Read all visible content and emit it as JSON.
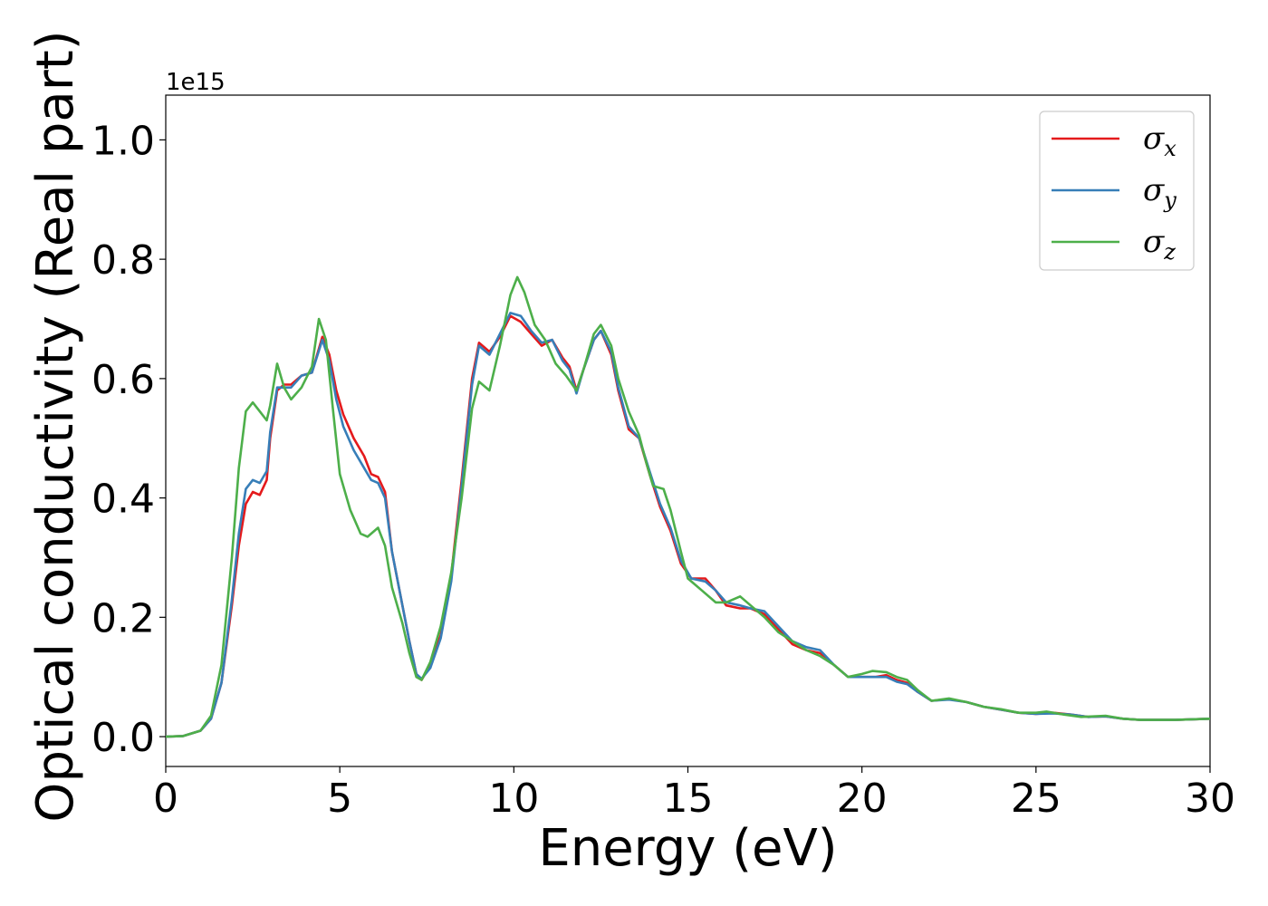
{
  "chart_data": {
    "type": "line",
    "xlabel": "Energy (eV)",
    "ylabel": "Optical conductivity (Real part)",
    "y_offset_label": "1e15",
    "xlim": [
      0,
      30
    ],
    "ylim": [
      -0.05,
      1.075
    ],
    "x_ticks": [
      0,
      5,
      10,
      15,
      20,
      25,
      30
    ],
    "x_tick_labels": [
      "0",
      "5",
      "10",
      "15",
      "20",
      "25",
      "30"
    ],
    "y_ticks": [
      0.0,
      0.2,
      0.4,
      0.6,
      0.8,
      1.0
    ],
    "y_tick_labels": [
      "0.0",
      "0.2",
      "0.4",
      "0.6",
      "0.8",
      "1.0"
    ],
    "grid": false,
    "legend_position": "top-right",
    "series": [
      {
        "name": "σx",
        "symbol": "σ",
        "subscript": "x",
        "color": "#e41a1c",
        "points": [
          [
            0,
            0
          ],
          [
            0.5,
            0.001
          ],
          [
            1,
            0.01
          ],
          [
            1.3,
            0.03
          ],
          [
            1.6,
            0.09
          ],
          [
            1.9,
            0.22
          ],
          [
            2.1,
            0.32
          ],
          [
            2.3,
            0.39
          ],
          [
            2.5,
            0.41
          ],
          [
            2.7,
            0.405
          ],
          [
            2.9,
            0.43
          ],
          [
            3.0,
            0.5
          ],
          [
            3.2,
            0.58
          ],
          [
            3.4,
            0.59
          ],
          [
            3.6,
            0.59
          ],
          [
            3.9,
            0.605
          ],
          [
            4.2,
            0.61
          ],
          [
            4.5,
            0.67
          ],
          [
            4.7,
            0.64
          ],
          [
            4.9,
            0.58
          ],
          [
            5.1,
            0.54
          ],
          [
            5.4,
            0.5
          ],
          [
            5.7,
            0.47
          ],
          [
            5.9,
            0.44
          ],
          [
            6.1,
            0.435
          ],
          [
            6.3,
            0.41
          ],
          [
            6.5,
            0.31
          ],
          [
            6.8,
            0.22
          ],
          [
            7.0,
            0.16
          ],
          [
            7.2,
            0.105
          ],
          [
            7.35,
            0.095
          ],
          [
            7.6,
            0.12
          ],
          [
            7.9,
            0.17
          ],
          [
            8.2,
            0.27
          ],
          [
            8.5,
            0.43
          ],
          [
            8.8,
            0.6
          ],
          [
            9.0,
            0.66
          ],
          [
            9.3,
            0.645
          ],
          [
            9.6,
            0.67
          ],
          [
            9.9,
            0.705
          ],
          [
            10.2,
            0.695
          ],
          [
            10.5,
            0.675
          ],
          [
            10.8,
            0.655
          ],
          [
            11.1,
            0.665
          ],
          [
            11.4,
            0.635
          ],
          [
            11.6,
            0.62
          ],
          [
            11.8,
            0.58
          ],
          [
            12.0,
            0.615
          ],
          [
            12.3,
            0.665
          ],
          [
            12.5,
            0.68
          ],
          [
            12.8,
            0.64
          ],
          [
            13.0,
            0.58
          ],
          [
            13.3,
            0.515
          ],
          [
            13.6,
            0.5
          ],
          [
            13.9,
            0.44
          ],
          [
            14.2,
            0.385
          ],
          [
            14.5,
            0.345
          ],
          [
            14.8,
            0.29
          ],
          [
            15.1,
            0.265
          ],
          [
            15.5,
            0.265
          ],
          [
            15.8,
            0.245
          ],
          [
            16.1,
            0.22
          ],
          [
            16.5,
            0.215
          ],
          [
            16.8,
            0.215
          ],
          [
            17.2,
            0.205
          ],
          [
            17.6,
            0.18
          ],
          [
            18.0,
            0.155
          ],
          [
            18.4,
            0.145
          ],
          [
            18.8,
            0.14
          ],
          [
            19.2,
            0.12
          ],
          [
            19.6,
            0.1
          ],
          [
            20.0,
            0.1
          ],
          [
            20.4,
            0.1
          ],
          [
            20.7,
            0.103
          ],
          [
            21.0,
            0.095
          ],
          [
            21.3,
            0.09
          ],
          [
            21.6,
            0.075
          ],
          [
            22.0,
            0.06
          ],
          [
            22.5,
            0.063
          ],
          [
            23.0,
            0.058
          ],
          [
            23.5,
            0.05
          ],
          [
            24.0,
            0.045
          ],
          [
            24.5,
            0.04
          ],
          [
            25.0,
            0.038
          ],
          [
            25.5,
            0.04
          ],
          [
            26.0,
            0.037
          ],
          [
            26.5,
            0.033
          ],
          [
            27.0,
            0.034
          ],
          [
            27.5,
            0.03
          ],
          [
            28.0,
            0.028
          ],
          [
            29.0,
            0.028
          ],
          [
            30.0,
            0.03
          ]
        ]
      },
      {
        "name": "σy",
        "symbol": "σ",
        "subscript": "y",
        "color": "#377eb8",
        "points": [
          [
            0,
            0
          ],
          [
            0.5,
            0.001
          ],
          [
            1,
            0.01
          ],
          [
            1.3,
            0.03
          ],
          [
            1.6,
            0.09
          ],
          [
            1.9,
            0.23
          ],
          [
            2.1,
            0.34
          ],
          [
            2.3,
            0.415
          ],
          [
            2.5,
            0.43
          ],
          [
            2.7,
            0.425
          ],
          [
            2.9,
            0.445
          ],
          [
            3.0,
            0.51
          ],
          [
            3.2,
            0.585
          ],
          [
            3.4,
            0.585
          ],
          [
            3.6,
            0.585
          ],
          [
            3.9,
            0.605
          ],
          [
            4.2,
            0.61
          ],
          [
            4.5,
            0.665
          ],
          [
            4.7,
            0.63
          ],
          [
            4.9,
            0.565
          ],
          [
            5.1,
            0.52
          ],
          [
            5.4,
            0.48
          ],
          [
            5.7,
            0.45
          ],
          [
            5.9,
            0.43
          ],
          [
            6.1,
            0.425
          ],
          [
            6.3,
            0.4
          ],
          [
            6.5,
            0.31
          ],
          [
            6.8,
            0.22
          ],
          [
            7.0,
            0.16
          ],
          [
            7.2,
            0.105
          ],
          [
            7.35,
            0.097
          ],
          [
            7.6,
            0.115
          ],
          [
            7.9,
            0.165
          ],
          [
            8.2,
            0.26
          ],
          [
            8.5,
            0.42
          ],
          [
            8.8,
            0.59
          ],
          [
            9.0,
            0.655
          ],
          [
            9.3,
            0.64
          ],
          [
            9.6,
            0.675
          ],
          [
            9.9,
            0.71
          ],
          [
            10.2,
            0.705
          ],
          [
            10.5,
            0.68
          ],
          [
            10.8,
            0.66
          ],
          [
            11.1,
            0.665
          ],
          [
            11.4,
            0.63
          ],
          [
            11.6,
            0.615
          ],
          [
            11.8,
            0.575
          ],
          [
            12.0,
            0.615
          ],
          [
            12.3,
            0.665
          ],
          [
            12.5,
            0.68
          ],
          [
            12.8,
            0.645
          ],
          [
            13.0,
            0.585
          ],
          [
            13.3,
            0.52
          ],
          [
            13.6,
            0.5
          ],
          [
            13.9,
            0.445
          ],
          [
            14.2,
            0.39
          ],
          [
            14.5,
            0.35
          ],
          [
            14.8,
            0.295
          ],
          [
            15.1,
            0.265
          ],
          [
            15.5,
            0.26
          ],
          [
            15.8,
            0.245
          ],
          [
            16.1,
            0.225
          ],
          [
            16.5,
            0.22
          ],
          [
            16.8,
            0.215
          ],
          [
            17.2,
            0.21
          ],
          [
            17.6,
            0.185
          ],
          [
            18.0,
            0.16
          ],
          [
            18.4,
            0.15
          ],
          [
            18.8,
            0.145
          ],
          [
            19.2,
            0.12
          ],
          [
            19.6,
            0.1
          ],
          [
            20.0,
            0.1
          ],
          [
            20.4,
            0.1
          ],
          [
            20.7,
            0.1
          ],
          [
            21.0,
            0.092
          ],
          [
            21.3,
            0.088
          ],
          [
            21.6,
            0.075
          ],
          [
            22.0,
            0.06
          ],
          [
            22.5,
            0.062
          ],
          [
            23.0,
            0.058
          ],
          [
            23.5,
            0.05
          ],
          [
            24.0,
            0.045
          ],
          [
            24.5,
            0.04
          ],
          [
            25.0,
            0.038
          ],
          [
            25.5,
            0.039
          ],
          [
            26.0,
            0.037
          ],
          [
            26.5,
            0.033
          ],
          [
            27.0,
            0.034
          ],
          [
            27.5,
            0.03
          ],
          [
            28.0,
            0.028
          ],
          [
            29.0,
            0.028
          ],
          [
            30.0,
            0.03
          ]
        ]
      },
      {
        "name": "σz",
        "symbol": "σ",
        "subscript": "z",
        "color": "#4daf4a",
        "points": [
          [
            0,
            0
          ],
          [
            0.5,
            0.001
          ],
          [
            1,
            0.01
          ],
          [
            1.3,
            0.035
          ],
          [
            1.6,
            0.12
          ],
          [
            1.9,
            0.3
          ],
          [
            2.1,
            0.45
          ],
          [
            2.3,
            0.545
          ],
          [
            2.5,
            0.56
          ],
          [
            2.7,
            0.545
          ],
          [
            2.9,
            0.53
          ],
          [
            3.0,
            0.555
          ],
          [
            3.2,
            0.625
          ],
          [
            3.4,
            0.585
          ],
          [
            3.6,
            0.565
          ],
          [
            3.9,
            0.585
          ],
          [
            4.2,
            0.62
          ],
          [
            4.4,
            0.7
          ],
          [
            4.6,
            0.665
          ],
          [
            4.8,
            0.55
          ],
          [
            5.0,
            0.44
          ],
          [
            5.3,
            0.38
          ],
          [
            5.6,
            0.34
          ],
          [
            5.8,
            0.335
          ],
          [
            6.1,
            0.35
          ],
          [
            6.3,
            0.32
          ],
          [
            6.5,
            0.25
          ],
          [
            6.8,
            0.19
          ],
          [
            7.0,
            0.14
          ],
          [
            7.2,
            0.1
          ],
          [
            7.35,
            0.095
          ],
          [
            7.6,
            0.125
          ],
          [
            7.9,
            0.185
          ],
          [
            8.2,
            0.275
          ],
          [
            8.5,
            0.4
          ],
          [
            8.8,
            0.55
          ],
          [
            9.0,
            0.595
          ],
          [
            9.3,
            0.58
          ],
          [
            9.6,
            0.655
          ],
          [
            9.9,
            0.74
          ],
          [
            10.1,
            0.77
          ],
          [
            10.3,
            0.745
          ],
          [
            10.6,
            0.69
          ],
          [
            10.9,
            0.665
          ],
          [
            11.2,
            0.625
          ],
          [
            11.5,
            0.605
          ],
          [
            11.8,
            0.58
          ],
          [
            12.0,
            0.615
          ],
          [
            12.3,
            0.675
          ],
          [
            12.5,
            0.69
          ],
          [
            12.8,
            0.655
          ],
          [
            13.0,
            0.6
          ],
          [
            13.3,
            0.545
          ],
          [
            13.6,
            0.505
          ],
          [
            13.8,
            0.46
          ],
          [
            14.0,
            0.42
          ],
          [
            14.3,
            0.415
          ],
          [
            14.5,
            0.38
          ],
          [
            14.8,
            0.31
          ],
          [
            15.0,
            0.265
          ],
          [
            15.4,
            0.245
          ],
          [
            15.8,
            0.225
          ],
          [
            16.1,
            0.225
          ],
          [
            16.5,
            0.235
          ],
          [
            16.8,
            0.22
          ],
          [
            17.2,
            0.2
          ],
          [
            17.6,
            0.175
          ],
          [
            18.0,
            0.16
          ],
          [
            18.4,
            0.145
          ],
          [
            18.8,
            0.135
          ],
          [
            19.2,
            0.12
          ],
          [
            19.6,
            0.1
          ],
          [
            20.0,
            0.105
          ],
          [
            20.3,
            0.11
          ],
          [
            20.7,
            0.108
          ],
          [
            21.0,
            0.1
          ],
          [
            21.3,
            0.095
          ],
          [
            21.6,
            0.078
          ],
          [
            22.0,
            0.06
          ],
          [
            22.5,
            0.064
          ],
          [
            23.0,
            0.058
          ],
          [
            23.5,
            0.05
          ],
          [
            24.0,
            0.046
          ],
          [
            24.5,
            0.04
          ],
          [
            25.0,
            0.04
          ],
          [
            25.3,
            0.042
          ],
          [
            25.8,
            0.037
          ],
          [
            26.3,
            0.033
          ],
          [
            27.0,
            0.035
          ],
          [
            27.5,
            0.03
          ],
          [
            28.0,
            0.028
          ],
          [
            29.0,
            0.028
          ],
          [
            30.0,
            0.03
          ]
        ]
      }
    ]
  }
}
